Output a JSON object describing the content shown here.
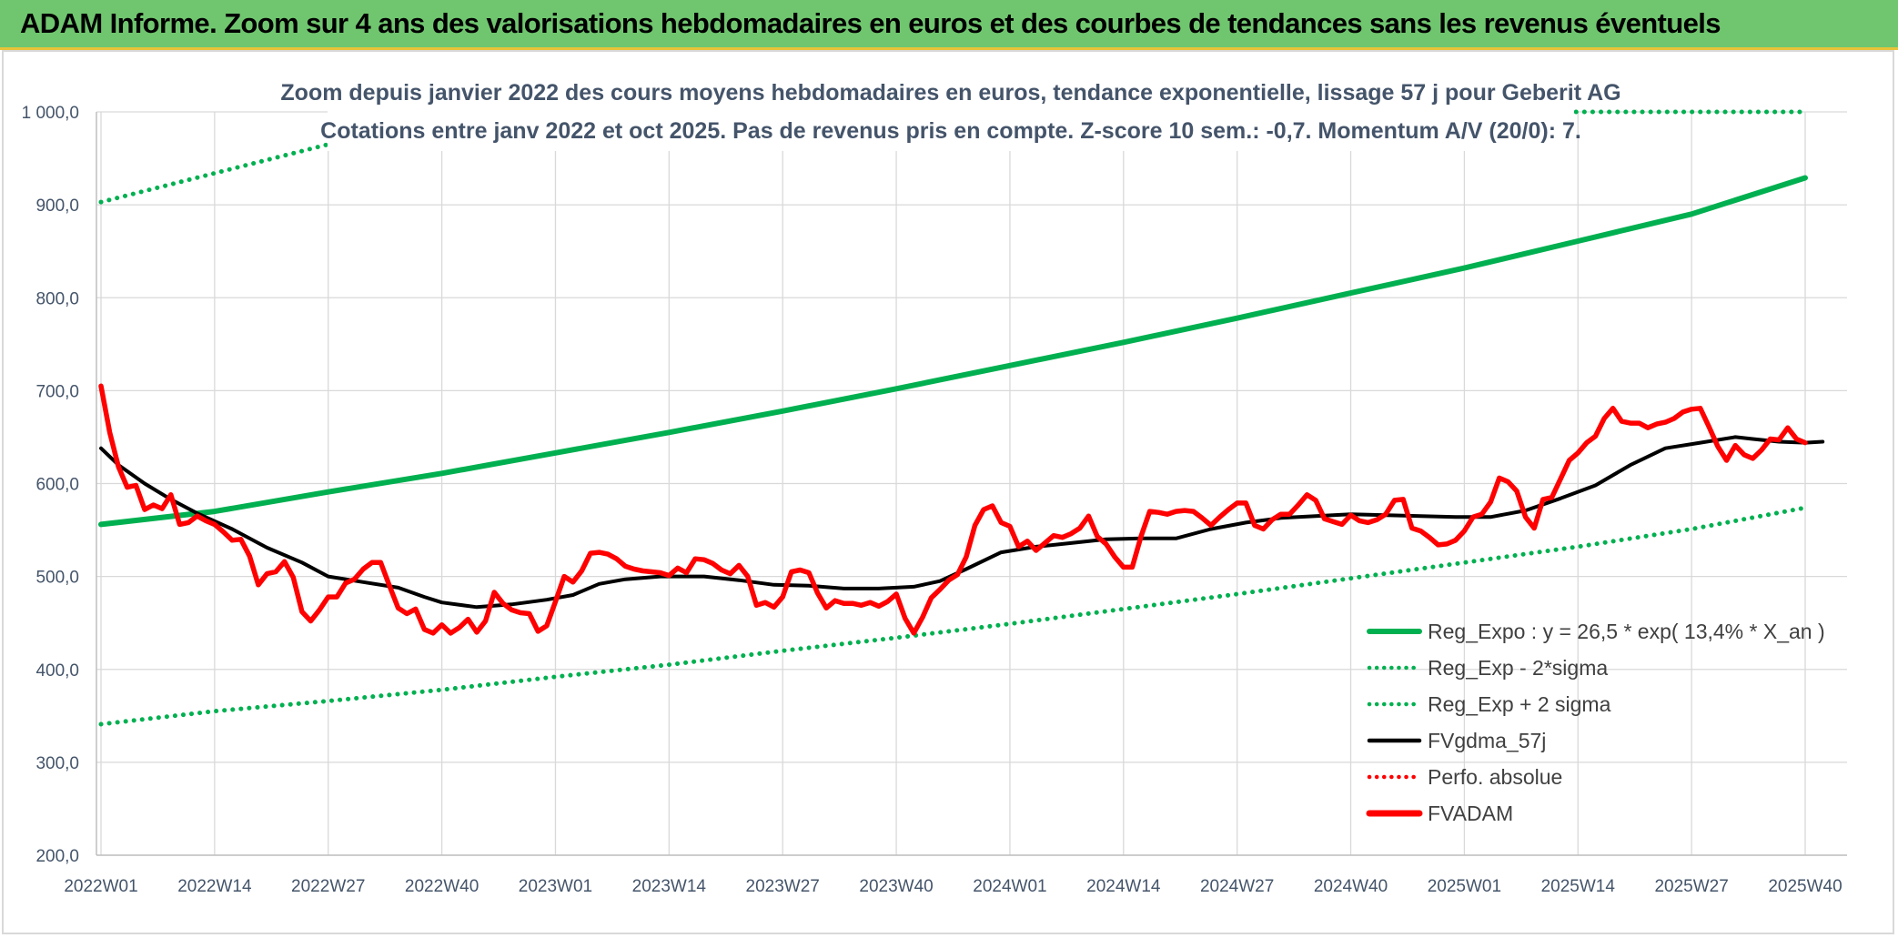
{
  "banner": {
    "title": "ADAM Informe. Zoom sur 4 ans des valorisations hebdomadaires en euros et des courbes de tendances sans les revenus éventuels"
  },
  "colors": {
    "banner_bg": "#70c66f",
    "green_trend": "#00b050",
    "black_ma": "#000000",
    "red_price": "#ff0000",
    "axis_text": "#44546a",
    "grid": "#d9d9d9"
  },
  "chart_data": {
    "type": "line",
    "title": "Zoom depuis janvier 2022 des cours moyens hebdomadaires en euros, tendance exponentielle, lissage 57 j pour Geberit AG",
    "subtitle": "Cotations entre janv 2022 et oct 2025. Pas de revenus pris en compte. Z-score 10 sem.: -0,7. Momentum A/V (20/0): 7.",
    "ylim": [
      200,
      1000
    ],
    "yticks": [
      "200,0",
      "300,0",
      "400,0",
      "500,0",
      "600,0",
      "700,0",
      "800,0",
      "900,0",
      "1 000,0"
    ],
    "ytick_values": [
      200,
      300,
      400,
      500,
      600,
      700,
      800,
      900,
      1000
    ],
    "xlim": [
      1,
      196
    ],
    "xticks": [
      "2022W01",
      "2022W14",
      "2022W27",
      "2022W40",
      "2023W01",
      "2023W14",
      "2023W27",
      "2023W40",
      "2024W01",
      "2024W14",
      "2024W27",
      "2024W40",
      "2025W01",
      "2025W14",
      "2025W27",
      "2025W40"
    ],
    "xtick_weeks": [
      1,
      14,
      27,
      40,
      53,
      66,
      79,
      92,
      105,
      118,
      131,
      144,
      157,
      170,
      183,
      196
    ],
    "grid": true,
    "legend_position": "bottom-right",
    "series": [
      {
        "name": "Reg_Expo : y = 26,5 * exp( 13,4% *  X_an )",
        "style": "solid",
        "color": "#00b050",
        "points": [
          [
            1,
            556
          ],
          [
            14,
            570
          ],
          [
            27,
            591
          ],
          [
            40,
            611
          ],
          [
            53,
            633
          ],
          [
            66,
            655
          ],
          [
            79,
            678
          ],
          [
            92,
            702
          ],
          [
            105,
            727
          ],
          [
            118,
            752
          ],
          [
            131,
            778
          ],
          [
            144,
            805
          ],
          [
            157,
            832
          ],
          [
            170,
            861
          ],
          [
            183,
            890
          ],
          [
            196,
            929
          ]
        ]
      },
      {
        "name": "Reg_Exp - 2*sigma",
        "style": "dotted",
        "color": "#00b050",
        "points": [
          [
            1,
            341
          ],
          [
            14,
            355
          ],
          [
            27,
            366
          ],
          [
            40,
            378
          ],
          [
            53,
            392
          ],
          [
            66,
            405
          ],
          [
            79,
            420
          ],
          [
            92,
            434
          ],
          [
            105,
            449
          ],
          [
            118,
            465
          ],
          [
            131,
            481
          ],
          [
            144,
            498
          ],
          [
            157,
            515
          ],
          [
            170,
            532
          ],
          [
            183,
            551
          ],
          [
            196,
            574
          ]
        ]
      },
      {
        "name": "Reg_Exp + 2 sigma",
        "style": "dotted",
        "color": "#00b050",
        "points": [
          [
            1,
            903
          ],
          [
            27,
            965
          ],
          [
            34,
            1000
          ],
          [
            196,
            1000
          ]
        ]
      },
      {
        "name": "FVgdma_57j",
        "style": "solid",
        "color": "#000000",
        "points": [
          [
            1,
            638
          ],
          [
            3,
            620
          ],
          [
            6,
            600
          ],
          [
            9,
            583
          ],
          [
            12,
            568
          ],
          [
            16,
            551
          ],
          [
            20,
            531
          ],
          [
            24,
            515
          ],
          [
            27,
            500
          ],
          [
            31,
            494
          ],
          [
            35,
            488
          ],
          [
            38,
            478
          ],
          [
            40,
            472
          ],
          [
            44,
            467
          ],
          [
            48,
            470
          ],
          [
            52,
            475
          ],
          [
            55,
            480
          ],
          [
            58,
            492
          ],
          [
            61,
            497
          ],
          [
            65,
            500
          ],
          [
            70,
            500
          ],
          [
            74,
            496
          ],
          [
            78,
            491
          ],
          [
            82,
            490
          ],
          [
            86,
            487
          ],
          [
            90,
            487
          ],
          [
            94,
            489
          ],
          [
            97,
            495
          ],
          [
            100,
            508
          ],
          [
            104,
            526
          ],
          [
            108,
            532
          ],
          [
            112,
            536
          ],
          [
            116,
            540
          ],
          [
            120,
            541
          ],
          [
            124,
            541
          ],
          [
            128,
            551
          ],
          [
            132,
            558
          ],
          [
            136,
            563
          ],
          [
            140,
            565
          ],
          [
            144,
            567
          ],
          [
            148,
            566
          ],
          [
            152,
            565
          ],
          [
            156,
            564
          ],
          [
            160,
            564
          ],
          [
            164,
            571
          ],
          [
            168,
            584
          ],
          [
            172,
            598
          ],
          [
            176,
            620
          ],
          [
            180,
            638
          ],
          [
            184,
            644
          ],
          [
            188,
            650
          ],
          [
            190,
            648
          ],
          [
            193,
            645
          ],
          [
            196,
            644
          ],
          [
            198,
            645
          ]
        ]
      },
      {
        "name": "Perfo. absolue",
        "style": "dotted",
        "color": "#ff0000",
        "points": []
      },
      {
        "name": "FVADAM",
        "style": "solid",
        "color": "#ff0000",
        "points": [
          [
            1,
            705
          ],
          [
            2,
            655
          ],
          [
            3,
            618
          ],
          [
            4,
            596
          ],
          [
            5,
            598
          ],
          [
            6,
            572
          ],
          [
            7,
            577
          ],
          [
            8,
            573
          ],
          [
            9,
            588
          ],
          [
            10,
            556
          ],
          [
            11,
            558
          ],
          [
            12,
            565
          ],
          [
            13,
            560
          ],
          [
            14,
            556
          ],
          [
            15,
            548
          ],
          [
            16,
            539
          ],
          [
            17,
            540
          ],
          [
            18,
            522
          ],
          [
            19,
            491
          ],
          [
            20,
            503
          ],
          [
            21,
            505
          ],
          [
            22,
            516
          ],
          [
            23,
            499
          ],
          [
            24,
            462
          ],
          [
            25,
            452
          ],
          [
            26,
            464
          ],
          [
            27,
            478
          ],
          [
            28,
            478
          ],
          [
            29,
            493
          ],
          [
            30,
            497
          ],
          [
            31,
            508
          ],
          [
            32,
            515
          ],
          [
            33,
            515
          ],
          [
            34,
            490
          ],
          [
            35,
            466
          ],
          [
            36,
            460
          ],
          [
            37,
            465
          ],
          [
            38,
            443
          ],
          [
            39,
            439
          ],
          [
            40,
            448
          ],
          [
            41,
            439
          ],
          [
            42,
            445
          ],
          [
            43,
            454
          ],
          [
            44,
            440
          ],
          [
            45,
            452
          ],
          [
            46,
            483
          ],
          [
            47,
            471
          ],
          [
            48,
            464
          ],
          [
            49,
            461
          ],
          [
            50,
            460
          ],
          [
            51,
            441
          ],
          [
            52,
            447
          ],
          [
            53,
            473
          ],
          [
            54,
            500
          ],
          [
            55,
            494
          ],
          [
            56,
            506
          ],
          [
            57,
            525
          ],
          [
            58,
            526
          ],
          [
            59,
            524
          ],
          [
            60,
            519
          ],
          [
            61,
            511
          ],
          [
            62,
            508
          ],
          [
            63,
            506
          ],
          [
            64,
            505
          ],
          [
            65,
            504
          ],
          [
            66,
            501
          ],
          [
            67,
            509
          ],
          [
            68,
            504
          ],
          [
            69,
            519
          ],
          [
            70,
            518
          ],
          [
            71,
            514
          ],
          [
            72,
            507
          ],
          [
            73,
            503
          ],
          [
            74,
            512
          ],
          [
            75,
            500
          ],
          [
            76,
            469
          ],
          [
            77,
            472
          ],
          [
            78,
            467
          ],
          [
            79,
            478
          ],
          [
            80,
            505
          ],
          [
            81,
            507
          ],
          [
            82,
            504
          ],
          [
            83,
            482
          ],
          [
            84,
            466
          ],
          [
            85,
            474
          ],
          [
            86,
            471
          ],
          [
            87,
            471
          ],
          [
            88,
            469
          ],
          [
            89,
            472
          ],
          [
            90,
            468
          ],
          [
            91,
            473
          ],
          [
            92,
            481
          ],
          [
            93,
            455
          ],
          [
            94,
            439
          ],
          [
            95,
            456
          ],
          [
            96,
            477
          ],
          [
            97,
            486
          ],
          [
            98,
            496
          ],
          [
            99,
            502
          ],
          [
            100,
            521
          ],
          [
            101,
            555
          ],
          [
            102,
            572
          ],
          [
            103,
            576
          ],
          [
            104,
            558
          ],
          [
            105,
            554
          ],
          [
            106,
            532
          ],
          [
            107,
            538
          ],
          [
            108,
            528
          ],
          [
            109,
            536
          ],
          [
            110,
            544
          ],
          [
            111,
            542
          ],
          [
            112,
            546
          ],
          [
            113,
            552
          ],
          [
            114,
            565
          ],
          [
            115,
            543
          ],
          [
            116,
            535
          ],
          [
            117,
            521
          ],
          [
            118,
            510
          ],
          [
            119,
            510
          ],
          [
            120,
            543
          ],
          [
            121,
            570
          ],
          [
            122,
            569
          ],
          [
            123,
            567
          ],
          [
            124,
            570
          ],
          [
            125,
            571
          ],
          [
            126,
            570
          ],
          [
            127,
            563
          ],
          [
            128,
            555
          ],
          [
            129,
            564
          ],
          [
            130,
            572
          ],
          [
            131,
            579
          ],
          [
            132,
            579
          ],
          [
            133,
            555
          ],
          [
            134,
            551
          ],
          [
            135,
            561
          ],
          [
            136,
            567
          ],
          [
            137,
            567
          ],
          [
            138,
            577
          ],
          [
            139,
            588
          ],
          [
            140,
            582
          ],
          [
            141,
            562
          ],
          [
            142,
            559
          ],
          [
            143,
            556
          ],
          [
            144,
            566
          ],
          [
            145,
            560
          ],
          [
            146,
            558
          ],
          [
            147,
            561
          ],
          [
            148,
            567
          ],
          [
            149,
            582
          ],
          [
            150,
            583
          ],
          [
            151,
            552
          ],
          [
            152,
            549
          ],
          [
            153,
            542
          ],
          [
            154,
            534
          ],
          [
            155,
            535
          ],
          [
            156,
            539
          ],
          [
            157,
            549
          ],
          [
            158,
            564
          ],
          [
            159,
            567
          ],
          [
            160,
            580
          ],
          [
            161,
            606
          ],
          [
            162,
            602
          ],
          [
            163,
            592
          ],
          [
            164,
            564
          ],
          [
            165,
            552
          ],
          [
            166,
            583
          ],
          [
            167,
            585
          ],
          [
            168,
            605
          ],
          [
            169,
            625
          ],
          [
            170,
            633
          ],
          [
            171,
            644
          ],
          [
            172,
            651
          ],
          [
            173,
            670
          ],
          [
            174,
            681
          ],
          [
            175,
            667
          ],
          [
            176,
            665
          ],
          [
            177,
            665
          ],
          [
            178,
            660
          ],
          [
            179,
            664
          ],
          [
            180,
            666
          ],
          [
            181,
            670
          ],
          [
            182,
            677
          ],
          [
            183,
            680
          ],
          [
            184,
            681
          ],
          [
            185,
            661
          ],
          [
            186,
            640
          ],
          [
            187,
            625
          ],
          [
            188,
            641
          ],
          [
            189,
            631
          ],
          [
            190,
            627
          ],
          [
            191,
            636
          ],
          [
            192,
            648
          ],
          [
            193,
            647
          ],
          [
            194,
            660
          ],
          [
            195,
            648
          ],
          [
            196,
            644
          ]
        ]
      }
    ]
  }
}
